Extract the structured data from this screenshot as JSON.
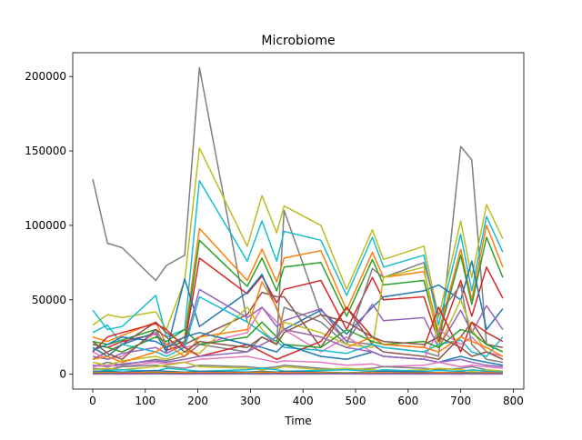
{
  "chart_data": {
    "type": "line",
    "title": "Microbiome",
    "xlabel": "Time",
    "ylabel": "",
    "xlim": [
      -38,
      820
    ],
    "ylim": [
      -10000,
      216000
    ],
    "x_ticks": [
      0,
      100,
      200,
      300,
      400,
      500,
      600,
      700,
      800
    ],
    "y_ticks": [
      0,
      50000,
      100000,
      150000,
      200000
    ],
    "x_tick_labels": [
      "0",
      "100",
      "200",
      "300",
      "400",
      "500",
      "600",
      "700",
      "800"
    ],
    "y_tick_labels": [
      "0",
      "50000",
      "100000",
      "150000",
      "200000"
    ],
    "grid": false,
    "legend": "none",
    "x": [
      0,
      28,
      56,
      120,
      140,
      175,
      203,
      294,
      322,
      350,
      364,
      434,
      483,
      532,
      553,
      630,
      658,
      700,
      721,
      749,
      780
    ],
    "series": [
      {
        "color": "#7f7f7f",
        "values": [
          131000,
          88000,
          85000,
          63000,
          73000,
          80000,
          206000,
          35000,
          28000,
          20000,
          110000,
          40000,
          22000,
          20000,
          18000,
          15000,
          12000,
          153000,
          144000,
          20000,
          15000
        ]
      },
      {
        "color": "#bcbd22",
        "values": [
          33000,
          40000,
          38000,
          42000,
          30000,
          63000,
          152000,
          86000,
          120000,
          95000,
          113000,
          100000,
          57000,
          97000,
          77000,
          86000,
          38000,
          103000,
          65000,
          114000,
          91000
        ]
      },
      {
        "color": "#17becf",
        "values": [
          43000,
          30000,
          32000,
          53000,
          25000,
          30000,
          130000,
          76000,
          103000,
          76000,
          96000,
          90000,
          53000,
          92000,
          72000,
          80000,
          33000,
          94000,
          56000,
          106000,
          82000
        ]
      },
      {
        "color": "#ff7f0e",
        "values": [
          25000,
          22000,
          26000,
          35000,
          20000,
          25000,
          98000,
          63000,
          84000,
          62000,
          78000,
          83000,
          43000,
          82000,
          65000,
          69000,
          28000,
          84000,
          50000,
          100000,
          72000
        ]
      },
      {
        "color": "#2ca02c",
        "values": [
          22000,
          20000,
          23000,
          30000,
          18000,
          22000,
          90000,
          59000,
          78000,
          56000,
          72000,
          75000,
          39000,
          77000,
          60000,
          63000,
          25000,
          80000,
          47000,
          92000,
          65000
        ]
      },
      {
        "color": "#d62728",
        "values": [
          20000,
          18000,
          22000,
          27000,
          16000,
          20000,
          78000,
          54000,
          66000,
          48000,
          57000,
          63000,
          30000,
          65000,
          50000,
          52000,
          22000,
          63000,
          39000,
          72000,
          51000
        ]
      },
      {
        "color": "#1f77b4",
        "values": [
          18000,
          12000,
          20000,
          28000,
          15000,
          64000,
          32000,
          55000,
          67000,
          44000,
          30000,
          43000,
          27000,
          45000,
          52000,
          56000,
          60000,
          50000,
          76000,
          30000,
          44000
        ]
      },
      {
        "color": "#8c564b",
        "values": [
          10000,
          15000,
          20000,
          35000,
          28000,
          20000,
          25000,
          40000,
          55000,
          52000,
          52000,
          18000,
          45000,
          20000,
          15000,
          12000,
          10000,
          25000,
          35000,
          20000,
          18000
        ]
      },
      {
        "color": "#e377c2",
        "values": [
          15000,
          10000,
          12000,
          28000,
          20000,
          18000,
          20000,
          28000,
          45000,
          35000,
          30000,
          15000,
          25000,
          15000,
          12000,
          10000,
          30000,
          20000,
          25000,
          15000,
          12000
        ]
      },
      {
        "color": "#9467bd",
        "values": [
          12000,
          10000,
          14000,
          18000,
          14000,
          20000,
          57000,
          38000,
          45000,
          32000,
          36000,
          44000,
          22000,
          47000,
          36000,
          38000,
          18000,
          43000,
          28000,
          46000,
          30000
        ]
      },
      {
        "color": "#7f7f7f",
        "values": [
          5000,
          8000,
          6000,
          10000,
          9000,
          12000,
          20000,
          15000,
          25000,
          20000,
          45000,
          35000,
          20000,
          71000,
          65000,
          75000,
          40000,
          60000,
          20000,
          10000,
          8000
        ]
      },
      {
        "color": "#bcbd22",
        "values": [
          8000,
          6000,
          9000,
          12000,
          10000,
          15000,
          14000,
          45000,
          30000,
          20000,
          35000,
          28000,
          20000,
          18000,
          65000,
          72000,
          18000,
          50000,
          30000,
          15000,
          10000
        ]
      },
      {
        "color": "#17becf",
        "values": [
          28000,
          33000,
          20000,
          15000,
          12000,
          18000,
          52000,
          35000,
          28000,
          22000,
          18000,
          16000,
          14000,
          20000,
          18000,
          15000,
          20000,
          23000,
          15000,
          12000,
          25000
        ]
      },
      {
        "color": "#d62728",
        "values": [
          15000,
          25000,
          28000,
          34000,
          30000,
          18000,
          12000,
          20000,
          15000,
          10000,
          12000,
          22000,
          45000,
          25000,
          20000,
          18000,
          45000,
          15000,
          35000,
          28000,
          22000
        ]
      },
      {
        "color": "#2ca02c",
        "values": [
          20000,
          18000,
          15000,
          25000,
          22000,
          30000,
          20000,
          25000,
          35000,
          25000,
          20000,
          18000,
          30000,
          22000,
          20000,
          22000,
          18000,
          30000,
          28000,
          20000,
          15000
        ]
      },
      {
        "color": "#ff7f0e",
        "values": [
          10000,
          12000,
          8000,
          15000,
          20000,
          12000,
          25000,
          30000,
          62000,
          45000,
          30000,
          25000,
          18000,
          25000,
          20000,
          18000,
          15000,
          25000,
          22000,
          18000,
          12000
        ]
      },
      {
        "color": "#1f77b4",
        "values": [
          16000,
          20000,
          25000,
          22000,
          18000,
          25000,
          28000,
          20000,
          18000,
          15000,
          20000,
          12000,
          10000,
          15000,
          12000,
          10000,
          8000,
          12000,
          10000,
          8000,
          6000
        ]
      },
      {
        "color": "#8c564b",
        "values": [
          22000,
          14000,
          10000,
          30000,
          25000,
          15000,
          22000,
          18000,
          25000,
          20000,
          28000,
          40000,
          35000,
          25000,
          22000,
          20000,
          25000,
          18000,
          12000,
          15000,
          10000
        ]
      },
      {
        "color": "#9467bd",
        "values": [
          6000,
          5000,
          7000,
          9000,
          8000,
          10000,
          12000,
          15000,
          20000,
          25000,
          30000,
          25000,
          18000,
          15000,
          12000,
          10000,
          8000,
          10000,
          8000,
          6000,
          5000
        ]
      },
      {
        "color": "#e377c2",
        "values": [
          5000,
          6000,
          5000,
          8000,
          7000,
          8000,
          10000,
          12000,
          10000,
          8000,
          9000,
          8000,
          6000,
          7000,
          5000,
          6000,
          8000,
          5000,
          6000,
          5000,
          4000
        ]
      },
      {
        "color": "#7f7f7f",
        "values": [
          4000,
          3000,
          5000,
          6000,
          5000,
          4000,
          6000,
          5000,
          4000,
          5000,
          6000,
          4000,
          3000,
          4000,
          5000,
          4000,
          3000,
          4000,
          5000,
          3000,
          2000
        ]
      },
      {
        "color": "#bcbd22",
        "values": [
          3000,
          4000,
          3000,
          5000,
          6000,
          8000,
          5000,
          4000,
          3000,
          4000,
          5000,
          3000,
          4000,
          3000,
          2000,
          3000,
          4000,
          3000,
          2000,
          3000,
          2000
        ]
      },
      {
        "color": "#17becf",
        "values": [
          2000,
          2500,
          3000,
          2000,
          4000,
          3000,
          2000,
          3000,
          4000,
          3000,
          2000,
          2500,
          3000,
          2000,
          3000,
          2000,
          2500,
          2000,
          3000,
          2000,
          1500
        ]
      },
      {
        "color": "#1f77b4",
        "values": [
          1500,
          2000,
          1500,
          2500,
          2000,
          1500,
          2000,
          1500,
          2000,
          1500,
          2000,
          1500,
          1000,
          1500,
          2000,
          1500,
          1000,
          1500,
          1000,
          1500,
          1000
        ]
      },
      {
        "color": "#ff7f0e",
        "values": [
          1000,
          1200,
          900,
          1500,
          1100,
          1300,
          1000,
          1200,
          1400,
          1100,
          1000,
          1200,
          900,
          1100,
          1000,
          900,
          1200,
          1000,
          800,
          1100,
          900
        ]
      },
      {
        "color": "#2ca02c",
        "values": [
          500,
          600,
          400,
          700,
          500,
          600,
          500,
          700,
          600,
          500,
          400,
          600,
          500,
          400,
          500,
          600,
          400,
          500,
          600,
          400,
          500
        ]
      },
      {
        "color": "#d62728",
        "values": [
          300,
          200,
          400,
          300,
          200,
          300,
          400,
          300,
          200,
          300,
          400,
          200,
          300,
          200,
          300,
          400,
          200,
          300,
          200,
          300,
          200
        ]
      },
      {
        "color": "#9467bd",
        "values": [
          100,
          150,
          100,
          200,
          150,
          100,
          150,
          200,
          100,
          150,
          100,
          150,
          200,
          100,
          150,
          100,
          150,
          100,
          200,
          100,
          150
        ]
      }
    ]
  }
}
